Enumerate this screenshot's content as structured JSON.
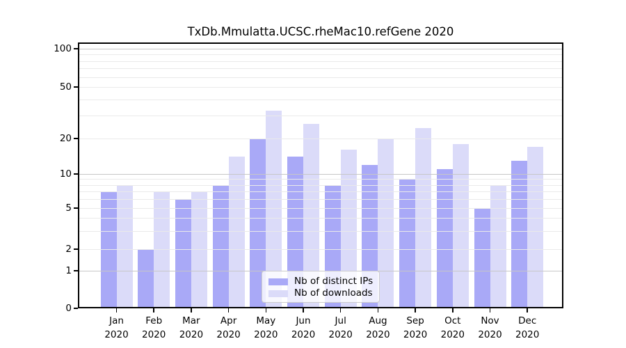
{
  "chart_data": {
    "type": "bar",
    "title": "TxDb.Mmulatta.UCSC.rheMac10.refGene 2020",
    "categories": [
      "Jan",
      "Feb",
      "Mar",
      "Apr",
      "May",
      "Jun",
      "Jul",
      "Aug",
      "Sep",
      "Oct",
      "Nov",
      "Dec"
    ],
    "year_label": "2020",
    "series": [
      {
        "name": "Nb of distinct IPs",
        "values": [
          7,
          2,
          6,
          8,
          20,
          14,
          8,
          12,
          9,
          11,
          5,
          13
        ]
      },
      {
        "name": "Nb of downloads",
        "values": [
          8,
          7,
          7,
          14,
          33,
          26,
          16,
          20,
          24,
          18,
          8,
          17
        ]
      }
    ],
    "y_axis": {
      "scale": "log-like (0,1,2,5,10,20,50,100)",
      "ticks": [
        100,
        50,
        20,
        10,
        5,
        2,
        1,
        0
      ],
      "minor_gridlines": [
        90,
        80,
        70,
        60,
        40,
        30,
        9,
        8,
        7,
        6,
        4,
        3
      ],
      "range": [
        0,
        100
      ]
    },
    "xlabel": "",
    "ylabel": "",
    "grid": true,
    "legend_position": "lower center"
  },
  "legend": {
    "items": [
      {
        "label": "Nb of distinct IPs",
        "color_key": "bar_distinct_ips"
      },
      {
        "label": "Nb of downloads",
        "color_key": "bar_downloads"
      }
    ]
  },
  "colors": {
    "bar_distinct_ips": "#a9a9f7",
    "bar_downloads": "#dbdbf9",
    "grid_decade": "#c7c7c7",
    "grid_minor": "#eaeaea",
    "axis": "#000000",
    "background": "#ffffff"
  }
}
